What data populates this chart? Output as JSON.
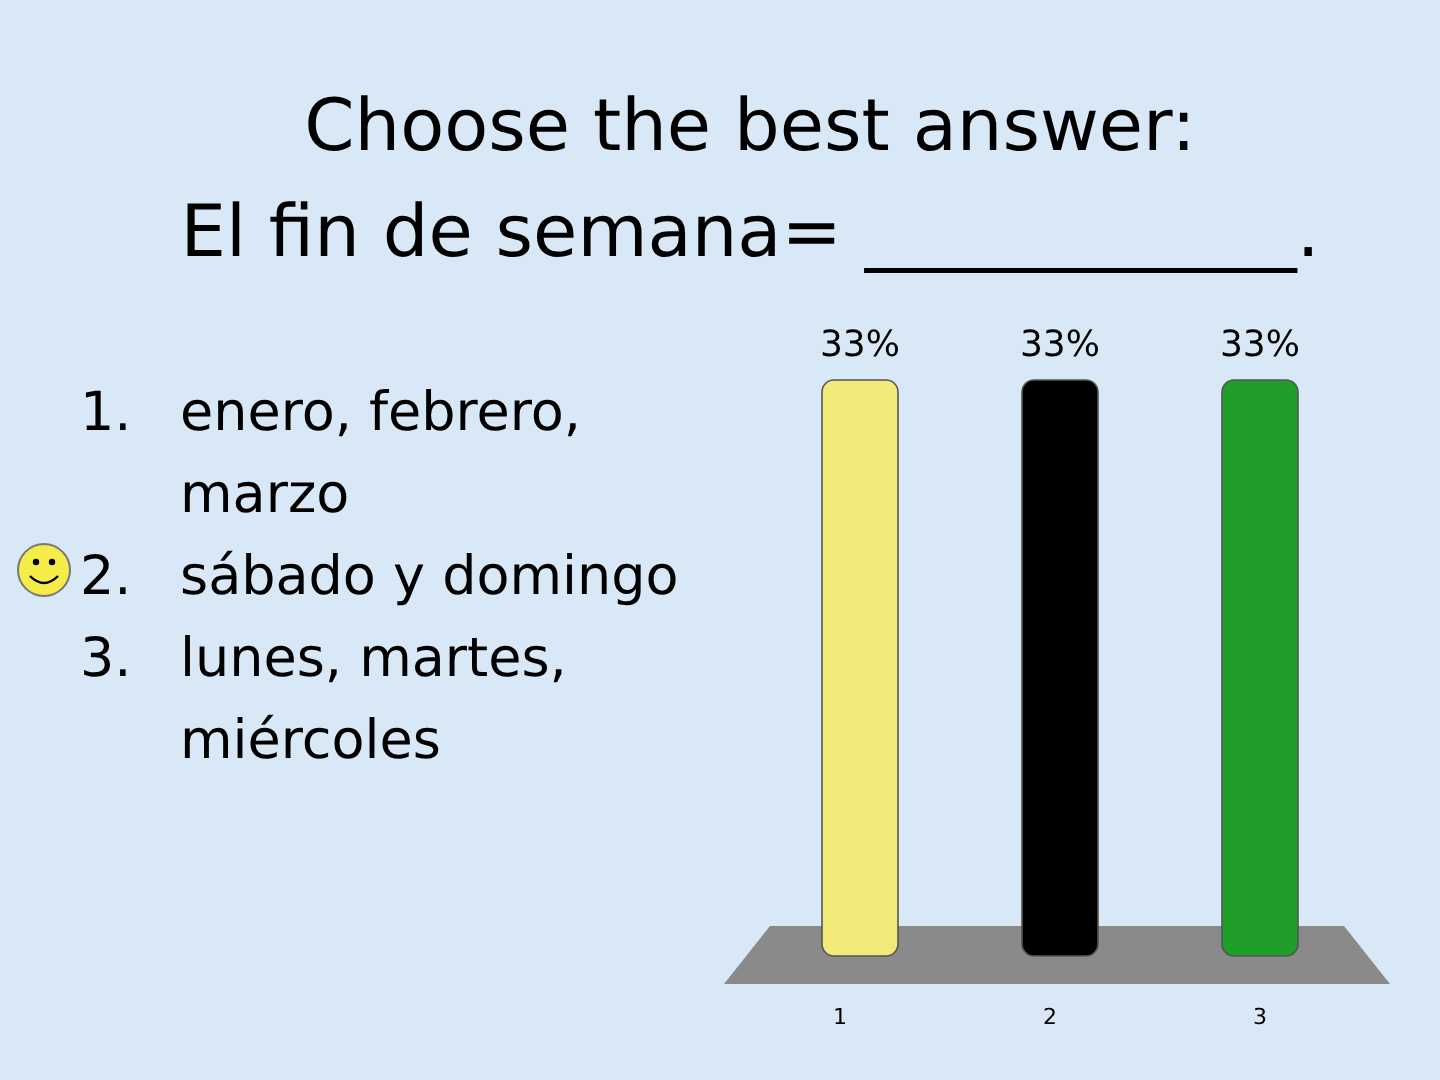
{
  "chart_data": {
    "type": "bar",
    "title": "Choose the best answer:",
    "subtitle": "El fin de semana= ____________.",
    "annotations": [
      "1. enero, febrero, marzo",
      "2. sábado y domingo",
      "3. lunes, martes, miércoles"
    ],
    "categories": [
      "1",
      "2",
      "3"
    ],
    "values": [
      33,
      33,
      33
    ],
    "value_labels": [
      "33%",
      "33%",
      "33%"
    ],
    "colors": [
      "#f2ea78",
      "#000000",
      "#1f9e2a"
    ]
  }
}
